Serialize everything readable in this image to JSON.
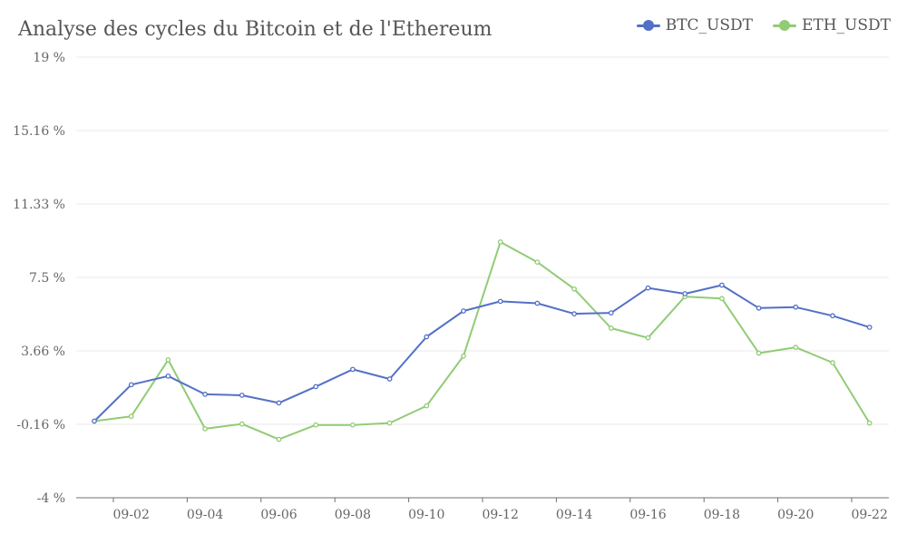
{
  "chart_data": {
    "type": "line",
    "title": "Analyse des cycles du Bitcoin et de l'Ethereum",
    "xlabel": "",
    "ylabel": "",
    "x": [
      "09-01",
      "09-02",
      "09-03",
      "09-04",
      "09-05",
      "09-06",
      "09-07",
      "09-08",
      "09-09",
      "09-10",
      "09-11",
      "09-12",
      "09-13",
      "09-14",
      "09-15",
      "09-16",
      "09-17",
      "09-18",
      "09-19",
      "09-20",
      "09-21",
      "09-22"
    ],
    "x_tick_labels": [
      "09-02",
      "09-04",
      "09-06",
      "09-08",
      "09-10",
      "09-12",
      "09-14",
      "09-16",
      "09-18",
      "09-20",
      "09-22"
    ],
    "y_tick_labels": [
      "-4 %",
      "-0.16 %",
      "3.66 %",
      "7.5 %",
      "11.33 %",
      "15.16 %",
      "19 %"
    ],
    "ylim": [
      -4,
      19
    ],
    "grid": true,
    "legend_position": "top-right",
    "series": [
      {
        "name": "BTC_USDT",
        "color": "#5470c6",
        "values": [
          0,
          1.9,
          2.35,
          1.4,
          1.35,
          0.95,
          1.8,
          2.7,
          2.2,
          4.4,
          5.75,
          6.25,
          6.15,
          5.6,
          5.65,
          6.95,
          6.65,
          7.1,
          5.9,
          5.95,
          5.5,
          4.9
        ]
      },
      {
        "name": "ETH_USDT",
        "color": "#91cc75",
        "values": [
          0,
          0.25,
          3.2,
          -0.4,
          -0.15,
          -0.95,
          -0.2,
          -0.2,
          -0.1,
          0.8,
          3.4,
          9.35,
          8.3,
          6.9,
          4.85,
          4.35,
          6.5,
          6.4,
          3.55,
          3.85,
          3.05,
          -0.1
        ]
      }
    ]
  }
}
